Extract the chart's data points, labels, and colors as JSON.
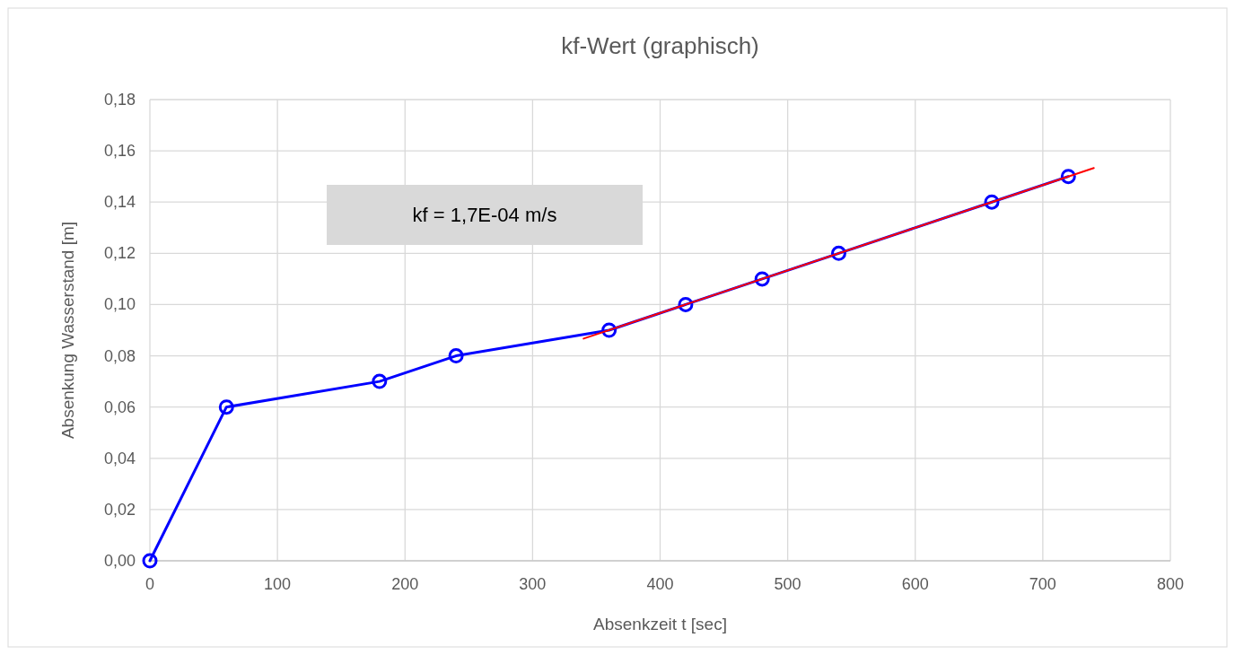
{
  "chart_data": {
    "type": "line",
    "title": "kf-Wert (graphisch)",
    "xlabel": "Absenkzeit t [sec]",
    "ylabel": "Absenkung Wasserstand [m]",
    "xlim": [
      0,
      800
    ],
    "xticks": [
      0,
      100,
      200,
      300,
      400,
      500,
      600,
      700,
      800
    ],
    "ylim": [
      0,
      0.18
    ],
    "yticks": [
      {
        "value": 0,
        "label": "0,00"
      },
      {
        "value": 0.02,
        "label": "0,02"
      },
      {
        "value": 0.04,
        "label": "0,04"
      },
      {
        "value": 0.06,
        "label": "0,06"
      },
      {
        "value": 0.08,
        "label": "0,08"
      },
      {
        "value": 0.1,
        "label": "0,10"
      },
      {
        "value": 0.12,
        "label": "0,12"
      },
      {
        "value": 0.14,
        "label": "0,14"
      },
      {
        "value": 0.16,
        "label": "0,16"
      },
      {
        "value": 0.18,
        "label": "0,18"
      }
    ],
    "grid": true,
    "series": [
      {
        "color": "#0000ff",
        "marker": "circle",
        "x": [
          0,
          60,
          180,
          240,
          360,
          420,
          480,
          540,
          660,
          720
        ],
        "values": [
          0,
          0.06,
          0.07,
          0.08,
          0.09,
          0.1,
          0.11,
          0.12,
          0.14,
          0.15
        ]
      },
      {
        "color": "#ff0000",
        "marker": "none",
        "x": [
          340,
          740
        ],
        "values": [
          0.0867,
          0.1533
        ]
      }
    ],
    "annotations": [
      "kf = 1,7E-04 m/s"
    ]
  }
}
